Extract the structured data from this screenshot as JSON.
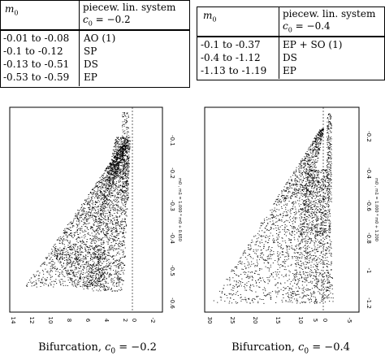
{
  "table_left": {
    "header": {
      "col1": "m0",
      "col2_line1": "piecew. lin. system",
      "col2_line2": "c0 = −0.2"
    },
    "rows": [
      {
        "range": "-0.01 to -0.08",
        "type": "AO (1)"
      },
      {
        "range": "-0.1 to -0.12",
        "type": "SP"
      },
      {
        "range": "-0.13 to -0.51",
        "type": "DS"
      },
      {
        "range": "-0.53 to -0.59",
        "type": "EP"
      }
    ]
  },
  "table_right": {
    "header": {
      "col1": "m0",
      "col2_line1": "piecew. lin. system",
      "col2_line2": "c0 = −0.4"
    },
    "rows": [
      {
        "range": "-0.1 to -0.37",
        "type": "EP + SO (1)"
      },
      {
        "range": "-0.4 to -1.12",
        "type": "DS"
      },
      {
        "range": "-1.13 to -1.19",
        "type": "EP"
      }
    ]
  },
  "plot_left": {
    "x_ticks": [
      "14",
      "12",
      "10",
      "8",
      "6",
      "4",
      "2",
      "0",
      "-2"
    ],
    "y_ticks": [
      "-0.1",
      "-0.2",
      "-0.3",
      "-0.4",
      "-0.5",
      "-0.6"
    ],
    "x_label": "x",
    "side_label": "m0 , m1 = 1.000 * m0 + 0.650",
    "caption_prefix": "Bifurcation, ",
    "caption_var": "c",
    "caption_sub": "0",
    "caption_value": " = −0.2"
  },
  "plot_right": {
    "x_ticks": [
      "30",
      "25",
      "20",
      "15",
      "10",
      "5",
      "0",
      "-5"
    ],
    "y_ticks": [
      "-0.2",
      "-0.4",
      "-0.6",
      "-0.8",
      "-1",
      "-1.2"
    ],
    "x_label": "x",
    "side_label": "m0 , m1 = 1.000 * m0 + 1.200",
    "caption_prefix": "Bifurcation, ",
    "caption_var": "c",
    "caption_sub": "0",
    "caption_value": " = −0.4"
  },
  "colors": {
    "ink": "#000000",
    "background": "#ffffff"
  }
}
